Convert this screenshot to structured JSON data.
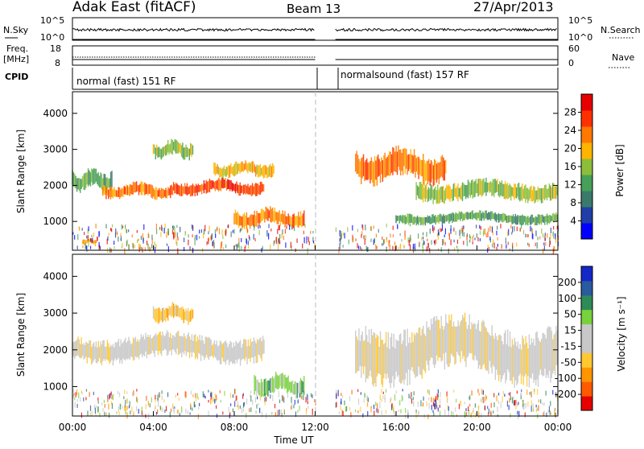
{
  "header": {
    "title": "Adak East (fitACF)",
    "beam": "Beam 13",
    "date": "27/Apr/2013"
  },
  "aux_panels": {
    "nsky_label": "N.Sky",
    "nsky_ticks": [
      "10^5",
      "10^0"
    ],
    "nsearch_label": "N.Search",
    "nsearch_ticks": [
      "10^5",
      "10^0"
    ],
    "freq_label_1": "Freq.",
    "freq_label_2": "[MHz]",
    "freq_ticks": [
      "18",
      "8"
    ],
    "nave_label": "Nave",
    "nave_ticks": [
      "60",
      "0"
    ],
    "cpid_label": "CPID",
    "cpid_1": "normal (fast) 151 RF",
    "cpid_2": "normalsound (fast) 157 RF"
  },
  "colors": {
    "power_scale": [
      "#0000ff",
      "#1f3ea8",
      "#3a7a6a",
      "#46a058",
      "#8cbe3a",
      "#ffb400",
      "#ff7800",
      "#ff3000",
      "#e60000"
    ],
    "velocity_scale": [
      "#e60000",
      "#ff5a00",
      "#ff9600",
      "#ffc832",
      "#c8c8c8",
      "#c8c8c8",
      "#78d23c",
      "#2e8b57",
      "#2a5aa0",
      "#1428c8"
    ]
  },
  "chart_data": [
    {
      "type": "heatmap",
      "panel": "power",
      "xlabel": "",
      "ylabel": "Slant Range [km]",
      "xlim": [
        0,
        24
      ],
      "ylim": [
        200,
        4600
      ],
      "yticks": [
        "4000",
        "3000",
        "2000",
        "1000"
      ],
      "data_gap_hours": [
        12.0,
        13.0
      ],
      "colorbar": {
        "label": "Power [dB]",
        "range": [
          0,
          32
        ],
        "ticks": [
          "28",
          "24",
          "20",
          "16",
          "12",
          "8",
          "4"
        ]
      },
      "echo_regions": [
        {
          "t": [
            0.0,
            2.0
          ],
          "range_km": [
            1800,
            2500
          ],
          "db": 12
        },
        {
          "t": [
            1.5,
            5.0
          ],
          "range_km": [
            1600,
            2100
          ],
          "db": 22
        },
        {
          "t": [
            5.0,
            9.5
          ],
          "range_km": [
            1700,
            2200
          ],
          "db": 26
        },
        {
          "t": [
            4.0,
            6.0
          ],
          "range_km": [
            2700,
            3300
          ],
          "db": 16
        },
        {
          "t": [
            7.0,
            10.0
          ],
          "range_km": [
            2200,
            2700
          ],
          "db": 20
        },
        {
          "t": [
            0.5,
            1.2
          ],
          "range_km": [
            350,
            550
          ],
          "db": 24
        },
        {
          "t": [
            8.0,
            11.5
          ],
          "range_km": [
            800,
            1400
          ],
          "db": 24
        },
        {
          "t": [
            14.0,
            18.5
          ],
          "range_km": [
            2000,
            3100
          ],
          "db": 22
        },
        {
          "t": [
            17.0,
            24.0
          ],
          "range_km": [
            1500,
            2200
          ],
          "db": 16
        },
        {
          "t": [
            16.0,
            24.0
          ],
          "range_km": [
            900,
            1300
          ],
          "db": 10
        }
      ]
    },
    {
      "type": "heatmap",
      "panel": "velocity",
      "xlabel": "Time UT",
      "ylabel": "Slant Range [km]",
      "xlim": [
        0,
        24
      ],
      "ylim": [
        200,
        4600
      ],
      "xticks": [
        "00:00",
        "04:00",
        "08:00",
        "12:00",
        "16:00",
        "20:00",
        "00:00"
      ],
      "yticks": [
        "4000",
        "3000",
        "2000",
        "1000"
      ],
      "data_gap_hours": [
        12.0,
        13.0
      ],
      "colorbar": {
        "label": "Velocity [m s⁻¹]",
        "range": [
          -250,
          250
        ],
        "ticks": [
          "200",
          "100",
          "50",
          "15",
          "-15",
          "-50",
          "-100",
          "-200"
        ]
      },
      "echo_regions": [
        {
          "t": [
            0.0,
            9.5
          ],
          "range_km": [
            1600,
            2500
          ],
          "v": 0
        },
        {
          "t": [
            4.0,
            6.0
          ],
          "range_km": [
            2700,
            3300
          ],
          "v": -40
        },
        {
          "t": [
            9.0,
            11.5
          ],
          "range_km": [
            700,
            1400
          ],
          "v": 40
        },
        {
          "t": [
            14.0,
            24.0
          ],
          "range_km": [
            1000,
            3000
          ],
          "v": 0
        }
      ]
    }
  ]
}
